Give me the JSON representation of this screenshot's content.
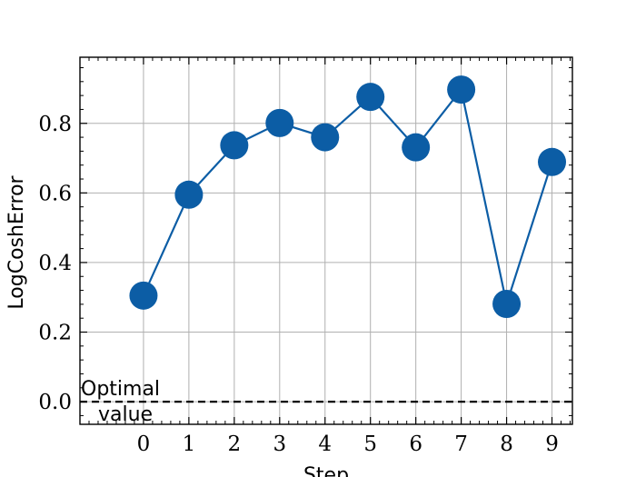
{
  "chart_data": {
    "type": "line",
    "xlabel": "Step",
    "ylabel": "LogCoshError",
    "x": [
      0,
      1,
      2,
      3,
      4,
      5,
      6,
      7,
      8,
      9
    ],
    "series": [
      {
        "values": [
          0.305,
          0.595,
          0.737,
          0.801,
          0.76,
          0.876,
          0.731,
          0.897,
          0.281,
          0.689
        ]
      }
    ],
    "xlim": [
      -1.4,
      9.45
    ],
    "ylim": [
      -0.065,
      0.99
    ],
    "xticks": [
      "0",
      "1",
      "2",
      "3",
      "4",
      "5",
      "6",
      "7",
      "8",
      "9"
    ],
    "yticks": [
      "0.0",
      "0.2",
      "0.4",
      "0.6",
      "0.8"
    ],
    "grid": true,
    "reference_line": {
      "y": 0.0,
      "style": "dashed"
    },
    "annotation": {
      "line1": "Optimal",
      "line2": "value"
    },
    "colors": {
      "series": "#0C5DA5",
      "grid": "#b0b0b0",
      "reference": "#000000"
    }
  }
}
